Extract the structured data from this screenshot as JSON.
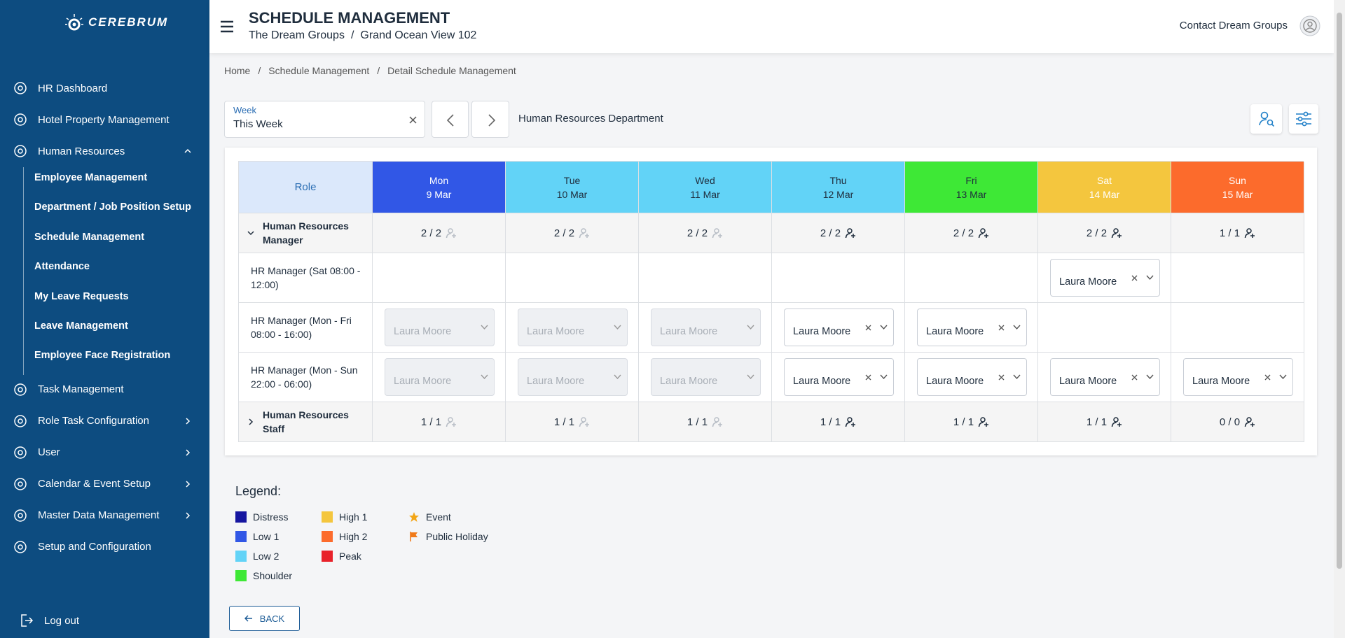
{
  "sidebar": {
    "brand": "CEREBRUM",
    "menu": [
      {
        "label": "HR Dashboard"
      },
      {
        "label": "Hotel Property Management"
      },
      {
        "label": "Human Resources",
        "chevron": "up",
        "children": [
          "Employee Management",
          "Department / Job Position Setup",
          "Schedule Management",
          "Attendance",
          "My Leave Requests",
          "Leave Management",
          "Employee Face Registration"
        ]
      },
      {
        "label": "Task Management"
      },
      {
        "label": "Role Task Configuration",
        "chevron": "right"
      },
      {
        "label": "User",
        "chevron": "right"
      },
      {
        "label": "Calendar & Event Setup",
        "chevron": "right"
      },
      {
        "label": "Master Data Management",
        "chevron": "right"
      },
      {
        "label": "Setup and Configuration"
      }
    ],
    "logout": "Log out"
  },
  "header": {
    "title": "SCHEDULE MANAGEMENT",
    "crumbs": [
      "The Dream Groups",
      "Grand Ocean View 102"
    ],
    "separator": "/",
    "user": "Contact Dream Groups"
  },
  "breadcrumb": [
    "Home",
    "Schedule Management",
    "Detail Schedule Management"
  ],
  "filter": {
    "label": "Week",
    "value": "This Week",
    "department": "Human Resources Department"
  },
  "table": {
    "role_header": "Role",
    "days": [
      {
        "name": "Mon",
        "date": "9 Mar",
        "color": "#3157e6",
        "text_color": "#ffffff"
      },
      {
        "name": "Tue",
        "date": "10 Mar",
        "color": "#62d3f7",
        "text_color": "#1f2d3d"
      },
      {
        "name": "Wed",
        "date": "11 Mar",
        "color": "#62d3f7",
        "text_color": "#1f2d3d"
      },
      {
        "name": "Thu",
        "date": "12 Mar",
        "color": "#62d3f7",
        "text_color": "#1f2d3d"
      },
      {
        "name": "Fri",
        "date": "13 Mar",
        "color": "#3ee836",
        "text_color": "#1f2d3d"
      },
      {
        "name": "Sat",
        "date": "14 Mar",
        "color": "#f4c63e",
        "text_color": "#ffffff"
      },
      {
        "name": "Sun",
        "date": "15 Mar",
        "color": "#fc6b2c",
        "text_color": "#ffffff"
      }
    ],
    "groups": [
      {
        "name": "Human Resources Manager",
        "expanded": true,
        "counts": [
          {
            "text": "2 / 2",
            "active": false
          },
          {
            "text": "2 / 2",
            "active": false
          },
          {
            "text": "2 / 2",
            "active": false
          },
          {
            "text": "2 / 2",
            "active": true
          },
          {
            "text": "2 / 2",
            "active": true
          },
          {
            "text": "2 / 2",
            "active": true
          },
          {
            "text": "1 / 1",
            "active": true
          }
        ],
        "rows": [
          {
            "role": "HR Manager (Sat 08:00 - 12:00)",
            "cells": [
              null,
              null,
              null,
              null,
              null,
              {
                "name": "Laura Moore",
                "disabled": false
              },
              null
            ]
          },
          {
            "role": "HR Manager (Mon - Fri 08:00 - 16:00)",
            "cells": [
              {
                "name": "Laura Moore",
                "disabled": true
              },
              {
                "name": "Laura Moore",
                "disabled": true
              },
              {
                "name": "Laura Moore",
                "disabled": true
              },
              {
                "name": "Laura Moore",
                "disabled": false
              },
              {
                "name": "Laura Moore",
                "disabled": false
              },
              null,
              null
            ]
          },
          {
            "role": "HR Manager (Mon - Sun 22:00 - 06:00)",
            "cells": [
              {
                "name": "Laura Moore",
                "disabled": true
              },
              {
                "name": "Laura Moore",
                "disabled": true
              },
              {
                "name": "Laura Moore",
                "disabled": true
              },
              {
                "name": "Laura Moore",
                "disabled": false
              },
              {
                "name": "Laura Moore",
                "disabled": false
              },
              {
                "name": "Laura Moore",
                "disabled": false
              },
              {
                "name": "Laura Moore",
                "disabled": false
              }
            ]
          }
        ]
      },
      {
        "name": "Human Resources Staff",
        "expanded": false,
        "counts": [
          {
            "text": "1 / 1",
            "active": false
          },
          {
            "text": "1 / 1",
            "active": false
          },
          {
            "text": "1 / 1",
            "active": false
          },
          {
            "text": "1 / 1",
            "active": true
          },
          {
            "text": "1 / 1",
            "active": true
          },
          {
            "text": "1 / 1",
            "active": true
          },
          {
            "text": "0 / 0",
            "active": true
          }
        ],
        "rows": []
      }
    ]
  },
  "legend": {
    "title": "Legend:",
    "columns": [
      [
        {
          "label": "Distress",
          "icon": "square",
          "color": "#1616a0"
        },
        {
          "label": "Low 1",
          "icon": "square",
          "color": "#3157e6"
        },
        {
          "label": "Low 2",
          "icon": "square",
          "color": "#62d3f7"
        },
        {
          "label": "Shoulder",
          "icon": "square",
          "color": "#3ee836"
        }
      ],
      [
        {
          "label": "High 1",
          "icon": "square",
          "color": "#f4c63e"
        },
        {
          "label": "High 2",
          "icon": "square",
          "color": "#fc6b2c"
        },
        {
          "label": "Peak",
          "icon": "square",
          "color": "#e8222a"
        }
      ],
      [
        {
          "label": "Event",
          "icon": "star",
          "color": "#f2a516"
        },
        {
          "label": "Public Holiday",
          "icon": "flag",
          "color": "#f07a1a"
        }
      ]
    ]
  },
  "back": "BACK"
}
